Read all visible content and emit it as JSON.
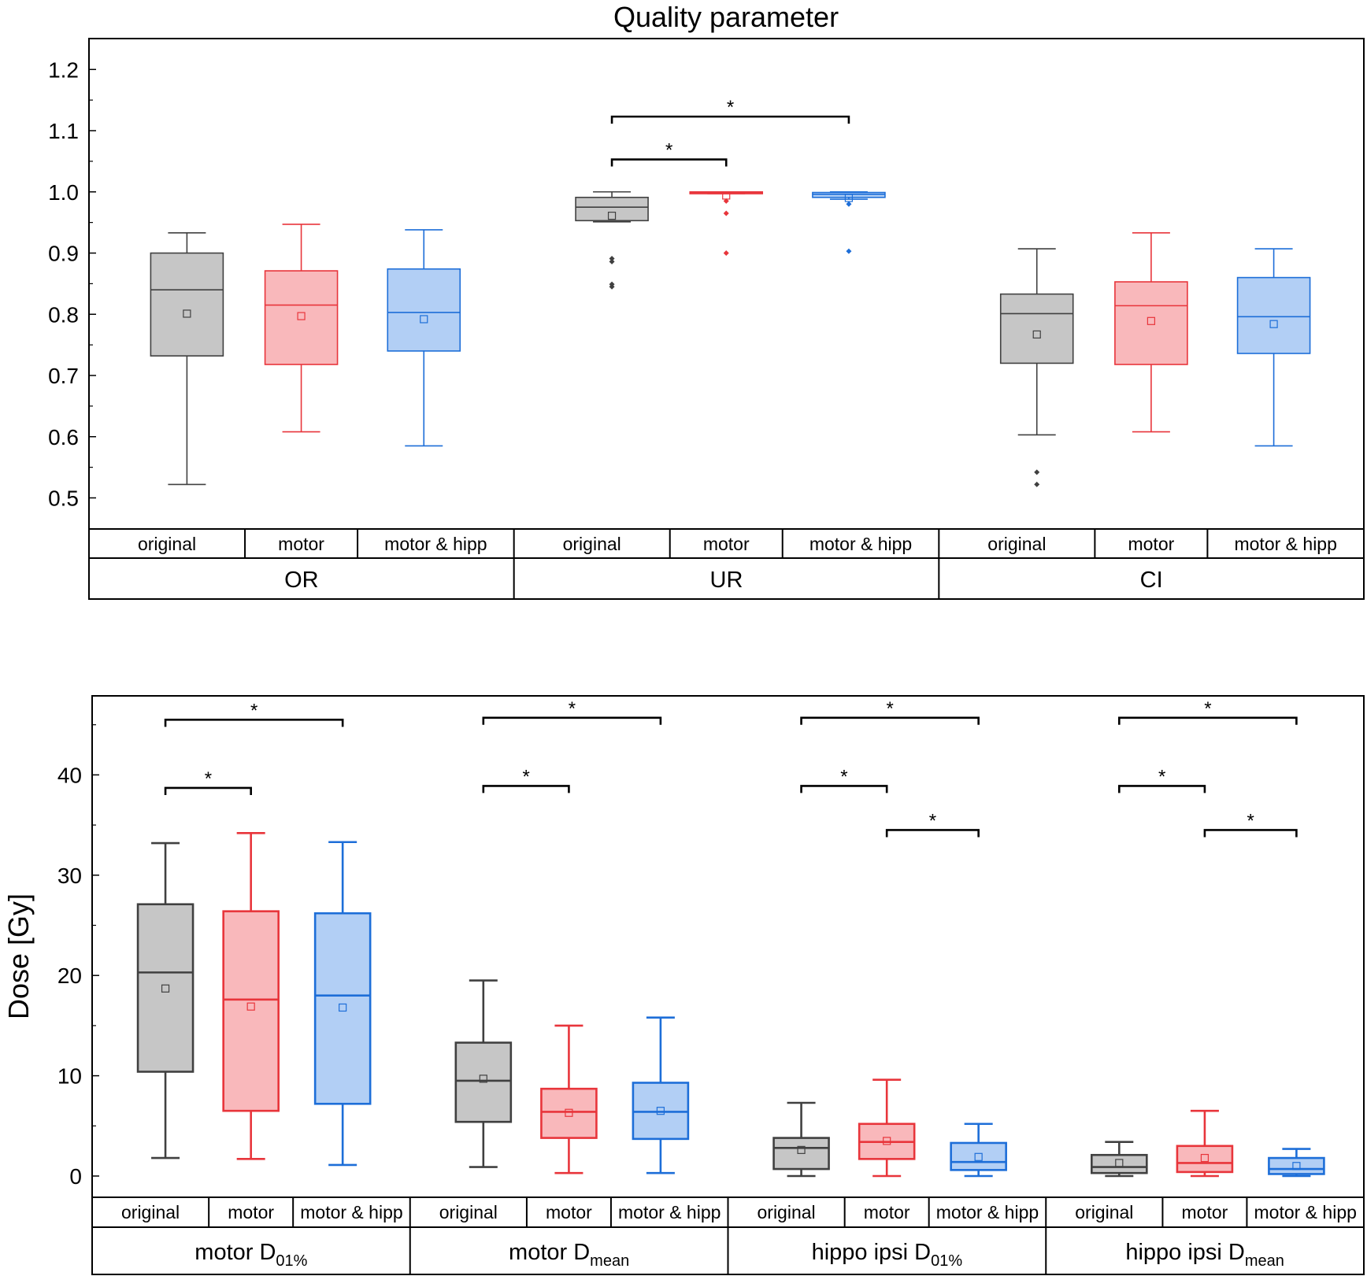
{
  "chart_data": [
    {
      "type": "box",
      "title": "Quality parameter",
      "ylabel": "",
      "ylim": [
        0.45,
        1.25
      ],
      "yticks": [
        0.5,
        0.6,
        0.7,
        0.8,
        0.9,
        1.0,
        1.1,
        1.2
      ],
      "ytick_labels": [
        "0.5",
        "0.6",
        "0.7",
        "0.8",
        "0.9",
        "1.0",
        "1.1",
        "1.2"
      ],
      "series_names": [
        "original",
        "motor",
        "motor & hipp"
      ],
      "groups": [
        {
          "label": "OR",
          "sub": "",
          "boxes": [
            {
              "label": "original",
              "whisker_low": 0.522,
              "q1": 0.732,
              "median": 0.84,
              "q3": 0.9,
              "whisker_high": 0.933,
              "mean": 0.801,
              "outliers": []
            },
            {
              "label": "motor",
              "whisker_low": 0.608,
              "q1": 0.718,
              "median": 0.815,
              "q3": 0.871,
              "whisker_high": 0.947,
              "mean": 0.797,
              "outliers": []
            },
            {
              "label": "motor & hipp",
              "whisker_low": 0.585,
              "q1": 0.74,
              "median": 0.803,
              "q3": 0.874,
              "whisker_high": 0.938,
              "mean": 0.792,
              "outliers": []
            }
          ],
          "significance": []
        },
        {
          "label": "UR",
          "sub": "",
          "boxes": [
            {
              "label": "original",
              "whisker_low": 0.951,
              "q1": 0.953,
              "median": 0.975,
              "q3": 0.991,
              "whisker_high": 1.0,
              "mean": 0.961,
              "outliers": [
                0.845,
                0.849,
                0.886,
                0.891
              ]
            },
            {
              "label": "motor",
              "whisker_low": 0.997,
              "q1": 0.997,
              "median": 0.999,
              "q3": 1.0,
              "whisker_high": 1.0,
              "mean": 0.994,
              "outliers": [
                0.9,
                0.965,
                0.985
              ]
            },
            {
              "label": "motor & hipp",
              "whisker_low": 0.988,
              "q1": 0.991,
              "median": 0.996,
              "q3": 0.999,
              "whisker_high": 1.0,
              "mean": 0.99,
              "outliers": [
                0.903,
                0.98
              ]
            }
          ],
          "significance": [
            {
              "from": 0,
              "to": 1,
              "y": 1.053,
              "label": "*"
            },
            {
              "from": 0,
              "to": 2,
              "y": 1.123,
              "label": "*"
            }
          ]
        },
        {
          "label": "CI",
          "sub": "",
          "boxes": [
            {
              "label": "original",
              "whisker_low": 0.603,
              "q1": 0.72,
              "median": 0.801,
              "q3": 0.833,
              "whisker_high": 0.907,
              "mean": 0.767,
              "outliers": [
                0.522,
                0.542
              ]
            },
            {
              "label": "motor",
              "whisker_low": 0.608,
              "q1": 0.718,
              "median": 0.814,
              "q3": 0.853,
              "whisker_high": 0.933,
              "mean": 0.789,
              "outliers": []
            },
            {
              "label": "motor & hipp",
              "whisker_low": 0.585,
              "q1": 0.736,
              "median": 0.796,
              "q3": 0.86,
              "whisker_high": 0.907,
              "mean": 0.784,
              "outliers": []
            }
          ],
          "significance": []
        }
      ]
    },
    {
      "type": "box",
      "title": "",
      "ylabel": "Dose [Gy]",
      "ylim": [
        -2,
        48
      ],
      "yticks": [
        0,
        10,
        20,
        30,
        40
      ],
      "ytick_labels": [
        "0",
        "10",
        "20",
        "30",
        "40"
      ],
      "series_names": [
        "original",
        "motor",
        "motor & hipp"
      ],
      "groups": [
        {
          "label": "motor D",
          "sub": "01%",
          "boxes": [
            {
              "label": "original",
              "whisker_low": 1.8,
              "q1": 10.4,
              "median": 20.3,
              "q3": 27.1,
              "whisker_high": 33.2,
              "mean": 18.7,
              "outliers": []
            },
            {
              "label": "motor",
              "whisker_low": 1.7,
              "q1": 6.5,
              "median": 17.6,
              "q3": 26.4,
              "whisker_high": 34.2,
              "mean": 16.9,
              "outliers": []
            },
            {
              "label": "motor & hipp",
              "whisker_low": 1.1,
              "q1": 7.2,
              "median": 18.0,
              "q3": 26.2,
              "whisker_high": 33.3,
              "mean": 16.8,
              "outliers": []
            }
          ],
          "significance": [
            {
              "from": 0,
              "to": 1,
              "y": 38.7,
              "label": "*"
            },
            {
              "from": 0,
              "to": 2,
              "y": 45.5,
              "label": "*"
            }
          ]
        },
        {
          "label": "motor D",
          "sub": "mean",
          "boxes": [
            {
              "label": "original",
              "whisker_low": 0.9,
              "q1": 5.4,
              "median": 9.5,
              "q3": 13.3,
              "whisker_high": 19.5,
              "mean": 9.7,
              "outliers": []
            },
            {
              "label": "motor",
              "whisker_low": 0.3,
              "q1": 3.8,
              "median": 6.4,
              "q3": 8.7,
              "whisker_high": 15.0,
              "mean": 6.3,
              "outliers": []
            },
            {
              "label": "motor & hipp",
              "whisker_low": 0.3,
              "q1": 3.7,
              "median": 6.4,
              "q3": 9.3,
              "whisker_high": 15.8,
              "mean": 6.5,
              "outliers": []
            }
          ],
          "significance": [
            {
              "from": 0,
              "to": 1,
              "y": 38.9,
              "label": "*"
            },
            {
              "from": 0,
              "to": 2,
              "y": 45.7,
              "label": "*"
            }
          ]
        },
        {
          "label": "hippo ipsi D",
          "sub": "01%",
          "boxes": [
            {
              "label": "original",
              "whisker_low": 0.0,
              "q1": 0.7,
              "median": 2.8,
              "q3": 3.8,
              "whisker_high": 7.3,
              "mean": 2.6,
              "outliers": []
            },
            {
              "label": "motor",
              "whisker_low": 0.0,
              "q1": 1.7,
              "median": 3.4,
              "q3": 5.2,
              "whisker_high": 9.6,
              "mean": 3.5,
              "outliers": []
            },
            {
              "label": "motor & hipp",
              "whisker_low": 0.0,
              "q1": 0.6,
              "median": 1.4,
              "q3": 3.3,
              "whisker_high": 5.2,
              "mean": 1.9,
              "outliers": []
            }
          ],
          "significance": [
            {
              "from": 0,
              "to": 1,
              "y": 38.9,
              "label": "*"
            },
            {
              "from": 1,
              "to": 2,
              "y": 34.5,
              "label": "*"
            },
            {
              "from": 0,
              "to": 2,
              "y": 45.7,
              "label": "*"
            }
          ]
        },
        {
          "label": "hippo ipsi D",
          "sub": "mean",
          "boxes": [
            {
              "label": "original",
              "whisker_low": 0.0,
              "q1": 0.3,
              "median": 0.9,
              "q3": 2.1,
              "whisker_high": 3.4,
              "mean": 1.3,
              "outliers": []
            },
            {
              "label": "motor",
              "whisker_low": 0.0,
              "q1": 0.4,
              "median": 1.3,
              "q3": 3.0,
              "whisker_high": 6.5,
              "mean": 1.8,
              "outliers": []
            },
            {
              "label": "motor & hipp",
              "whisker_low": 0.0,
              "q1": 0.2,
              "median": 0.7,
              "q3": 1.8,
              "whisker_high": 2.7,
              "mean": 1.0,
              "outliers": []
            }
          ],
          "significance": [
            {
              "from": 0,
              "to": 1,
              "y": 38.9,
              "label": "*"
            },
            {
              "from": 1,
              "to": 2,
              "y": 34.5,
              "label": "*"
            },
            {
              "from": 0,
              "to": 2,
              "y": 45.7,
              "label": "*"
            }
          ]
        }
      ]
    }
  ],
  "colors": {
    "original": {
      "stroke": "#404040",
      "fill": "#c6c6c6"
    },
    "motor": {
      "stroke": "#e8353b",
      "fill": "#f9b8bb"
    },
    "motor & hipp": {
      "stroke": "#1d6ed8",
      "fill": "#b2cff5"
    }
  }
}
